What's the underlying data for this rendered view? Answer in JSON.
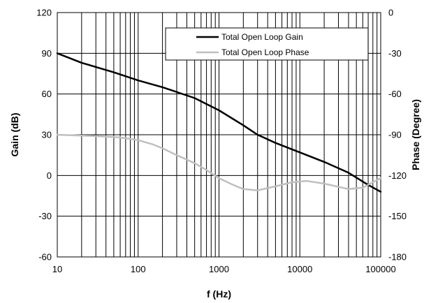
{
  "chart_data": {
    "type": "line",
    "title": "",
    "xlabel": "f (Hz)",
    "ylabel": "Gain (dB)",
    "y2label": "Phase (Degree)",
    "x_scale": "log",
    "xlim": [
      10,
      100000
    ],
    "ylim": [
      -60,
      120
    ],
    "y2lim": [
      -180,
      0
    ],
    "grid": true,
    "legend_position": "top-right",
    "x_ticks": [
      "10",
      "100",
      "1000",
      "10000",
      "100000"
    ],
    "y_ticks": [
      "120",
      "90",
      "60",
      "30",
      "0",
      "-30",
      "-60"
    ],
    "y2_ticks": [
      "0",
      "-30",
      "-60",
      "-90",
      "-120",
      "-150",
      "-180"
    ],
    "series": [
      {
        "name": "Total Open Loop Gain",
        "axis": "left",
        "color": "#000000",
        "x": [
          10,
          20,
          50,
          100,
          200,
          500,
          1000,
          2000,
          3000,
          5000,
          10000,
          20000,
          40000,
          70000,
          100000
        ],
        "y": [
          90,
          83,
          76,
          70,
          65,
          57,
          48,
          37,
          30,
          24,
          17,
          10,
          2,
          -7,
          -12
        ]
      },
      {
        "name": "Total Open Loop Phase",
        "axis": "right",
        "color": "#bfbfbf",
        "x": [
          10,
          30,
          60,
          100,
          150,
          200,
          300,
          500,
          700,
          1000,
          1500,
          2000,
          3000,
          5000,
          8000,
          12000,
          20000,
          40000,
          60000,
          100000
        ],
        "y": [
          -90,
          -91,
          -92,
          -94,
          -97,
          -100,
          -105,
          -111,
          -116,
          -122,
          -127,
          -130,
          -131,
          -128,
          -125,
          -124,
          -126,
          -130,
          -129,
          -122
        ]
      }
    ]
  }
}
